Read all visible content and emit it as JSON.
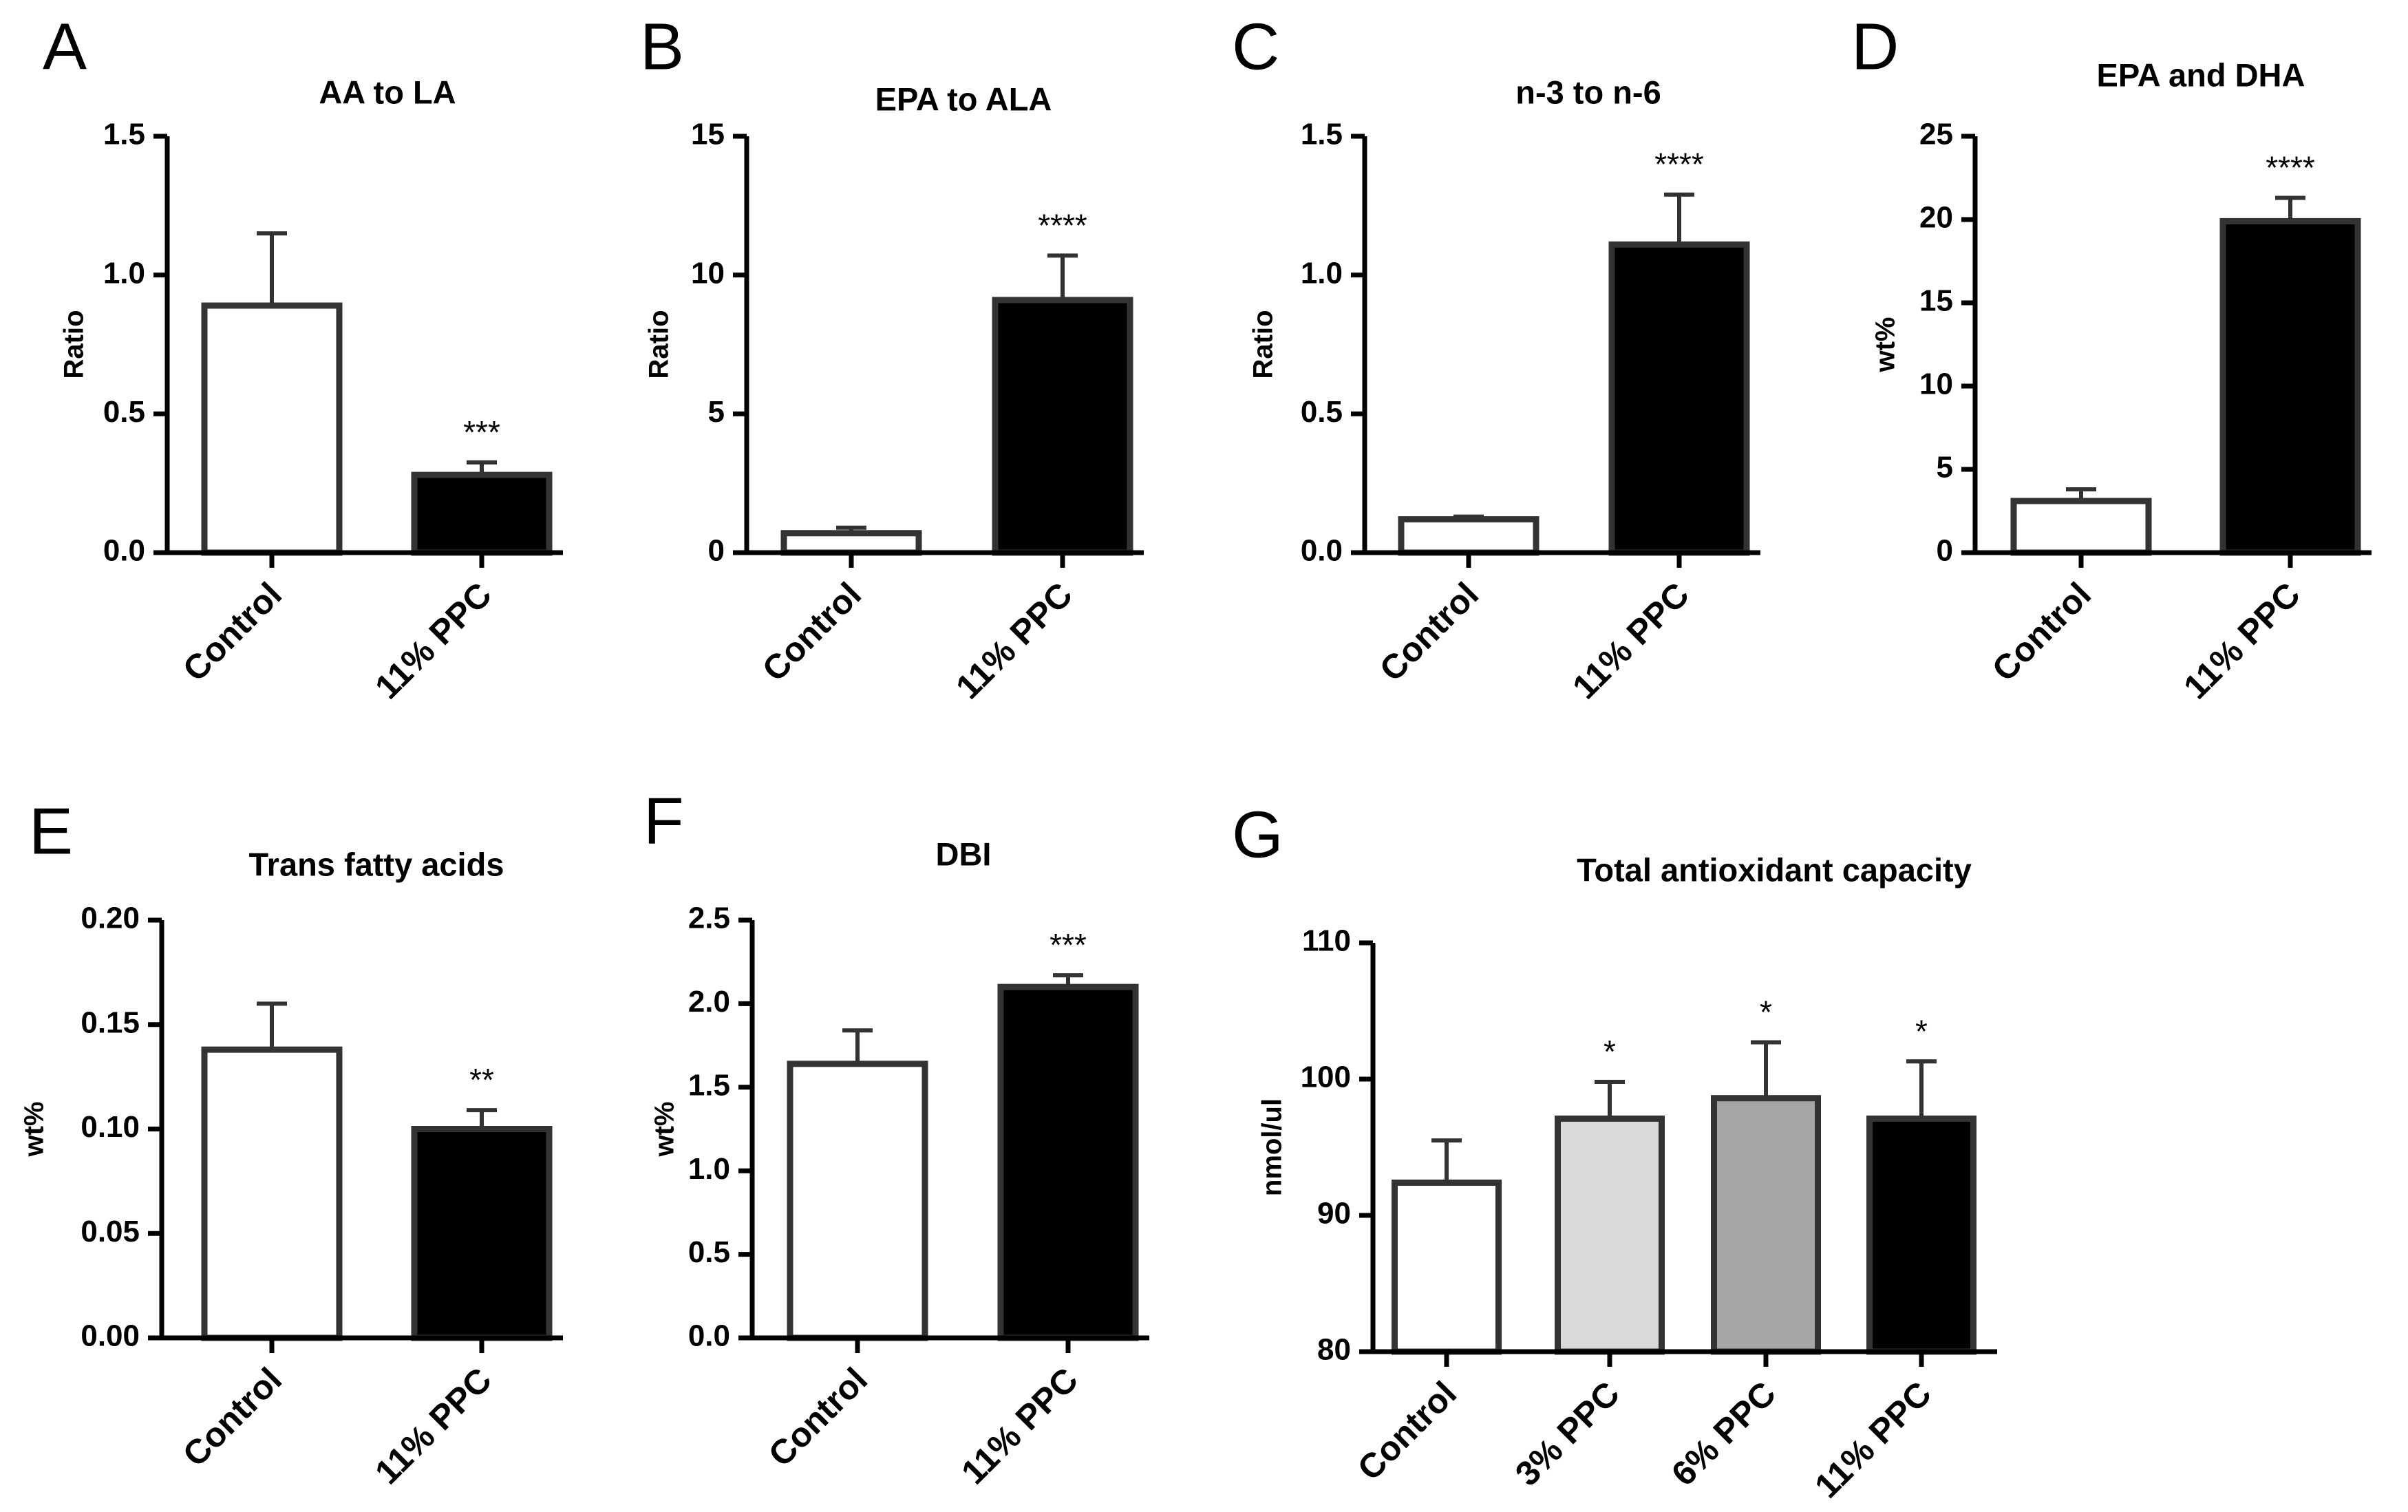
{
  "chart_data": [
    {
      "panel": "A",
      "type": "bar",
      "title": "AA to LA",
      "xlabel": "",
      "ylabel": "Ratio",
      "categories": [
        "Control",
        "11% PPC"
      ],
      "values": [
        0.89,
        0.28
      ],
      "errors": [
        0.26,
        0.045
      ],
      "significance": [
        "",
        "***"
      ],
      "colors": [
        "#ffffff",
        "#000000"
      ],
      "ylim": [
        0,
        1.5
      ],
      "yticks": [
        0,
        0.5,
        1.0,
        1.5
      ],
      "ytick_labels": [
        "0.0",
        "0.5",
        "1.0",
        "1.5"
      ]
    },
    {
      "panel": "B",
      "type": "bar",
      "title": "EPA to ALA",
      "xlabel": "",
      "ylabel": "Ratio",
      "categories": [
        "Control",
        "11% PPC"
      ],
      "values": [
        0.7,
        9.1
      ],
      "errors": [
        0.2,
        1.6
      ],
      "significance": [
        "",
        "****"
      ],
      "colors": [
        "#ffffff",
        "#000000"
      ],
      "ylim": [
        0,
        15
      ],
      "yticks": [
        0,
        5,
        10,
        15
      ],
      "ytick_labels": [
        "0",
        "5",
        "10",
        "15"
      ]
    },
    {
      "panel": "C",
      "type": "bar",
      "title": "n-3 to n-6",
      "xlabel": "",
      "ylabel": "Ratio",
      "categories": [
        "Control",
        "11% PPC"
      ],
      "values": [
        0.12,
        1.11
      ],
      "errors": [
        0.01,
        0.18
      ],
      "significance": [
        "",
        "****"
      ],
      "colors": [
        "#ffffff",
        "#000000"
      ],
      "ylim": [
        0,
        1.5
      ],
      "yticks": [
        0,
        0.5,
        1.0,
        1.5
      ],
      "ytick_labels": [
        "0.0",
        "0.5",
        "1.0",
        "1.5"
      ]
    },
    {
      "panel": "D",
      "type": "bar",
      "title": "EPA and DHA",
      "xlabel": "",
      "ylabel": "wt%",
      "categories": [
        "Control",
        "11% PPC"
      ],
      "values": [
        3.1,
        19.9
      ],
      "errors": [
        0.7,
        1.4
      ],
      "significance": [
        "",
        "****"
      ],
      "colors": [
        "#ffffff",
        "#000000"
      ],
      "ylim": [
        0,
        25
      ],
      "yticks": [
        0,
        5,
        10,
        15,
        20,
        25
      ],
      "ytick_labels": [
        "0",
        "5",
        "10",
        "15",
        "20",
        "25"
      ]
    },
    {
      "panel": "E",
      "type": "bar",
      "title": "Trans fatty acids",
      "xlabel": "",
      "ylabel": "wt%",
      "categories": [
        "Control",
        "11% PPC"
      ],
      "values": [
        0.138,
        0.1
      ],
      "errors": [
        0.022,
        0.009
      ],
      "significance": [
        "",
        "**"
      ],
      "colors": [
        "#ffffff",
        "#000000"
      ],
      "ylim": [
        0,
        0.2
      ],
      "yticks": [
        0,
        0.05,
        0.1,
        0.15,
        0.2
      ],
      "ytick_labels": [
        "0.00",
        "0.05",
        "0.10",
        "0.15",
        "0.20"
      ]
    },
    {
      "panel": "F",
      "type": "bar",
      "title": "DBI",
      "xlabel": "",
      "ylabel": "wt%",
      "categories": [
        "Control",
        "11% PPC"
      ],
      "values": [
        1.64,
        2.1
      ],
      "errors": [
        0.2,
        0.07
      ],
      "significance": [
        "",
        "***"
      ],
      "colors": [
        "#ffffff",
        "#000000"
      ],
      "ylim": [
        0,
        2.5
      ],
      "yticks": [
        0,
        0.5,
        1.0,
        1.5,
        2.0,
        2.5
      ],
      "ytick_labels": [
        "0.0",
        "0.5",
        "1.0",
        "1.5",
        "2.0",
        "2.5"
      ]
    },
    {
      "panel": "G",
      "type": "bar",
      "title": "Total antioxidant capacity",
      "xlabel": "",
      "ylabel": "nmol/ul",
      "categories": [
        "Control",
        "3% PPC",
        "6% PPC",
        "11% PPC"
      ],
      "values": [
        92.4,
        97.1,
        98.6,
        97.1
      ],
      "errors": [
        3.1,
        2.7,
        4.1,
        4.2
      ],
      "significance": [
        "",
        "*",
        "*",
        "*"
      ],
      "colors": [
        "#ffffff",
        "#d9d9d9",
        "#a6a6a9",
        "#000000"
      ],
      "ylim": [
        80,
        110
      ],
      "yticks": [
        80,
        90,
        100,
        110
      ],
      "ytick_labels": [
        "80",
        "90",
        "100",
        "110"
      ]
    }
  ]
}
